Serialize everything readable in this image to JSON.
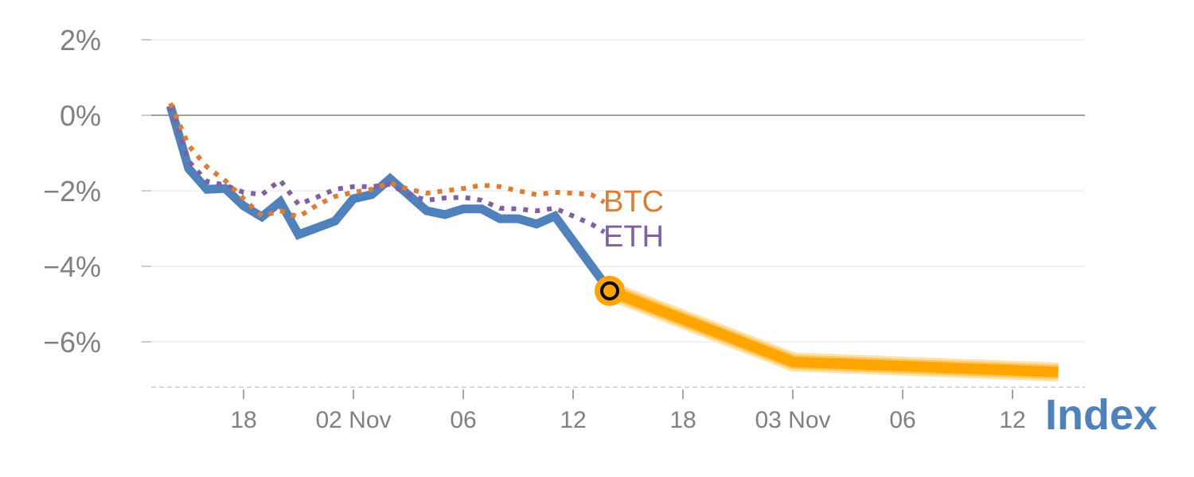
{
  "chart_data": {
    "type": "line",
    "title": "",
    "xlabel": "",
    "ylabel": "",
    "x_unit": "hours since 01 Nov 00:00",
    "xlim": [
      13,
      64
    ],
    "ylim": [
      -7.2,
      2.2
    ],
    "grid": true,
    "x_ticks": [
      {
        "value": 18,
        "label": "18"
      },
      {
        "value": 24,
        "label": "02 Nov"
      },
      {
        "value": 30,
        "label": "06"
      },
      {
        "value": 36,
        "label": "12"
      },
      {
        "value": 42,
        "label": "18"
      },
      {
        "value": 48,
        "label": "03 Nov"
      },
      {
        "value": 54,
        "label": "06"
      },
      {
        "value": 60,
        "label": "12"
      }
    ],
    "y_ticks": [
      {
        "value": 2,
        "label": "2%"
      },
      {
        "value": 0,
        "label": "0%"
      },
      {
        "value": -2,
        "label": "−2%"
      },
      {
        "value": -4,
        "label": "−4%"
      },
      {
        "value": -6,
        "label": "−6%"
      }
    ],
    "series": [
      {
        "name": "BTC",
        "label": "BTC",
        "color": "#e07b32",
        "style": "dotted",
        "points": [
          [
            14,
            0.32
          ],
          [
            15,
            -0.8
          ],
          [
            16,
            -1.37
          ],
          [
            17,
            -1.73
          ],
          [
            18,
            -2.21
          ],
          [
            19,
            -2.67
          ],
          [
            20,
            -2.53
          ],
          [
            21,
            -2.69
          ],
          [
            22,
            -2.38
          ],
          [
            23,
            -2.15
          ],
          [
            24,
            -2.04
          ],
          [
            25,
            -1.96
          ],
          [
            26,
            -1.79
          ],
          [
            27,
            -1.96
          ],
          [
            28,
            -2.06
          ],
          [
            29,
            -2.0
          ],
          [
            30,
            -1.94
          ],
          [
            31,
            -1.85
          ],
          [
            32,
            -1.89
          ],
          [
            33,
            -2.0
          ],
          [
            34,
            -2.1
          ],
          [
            35,
            -2.04
          ],
          [
            36,
            -2.06
          ],
          [
            37,
            -2.1
          ],
          [
            37.7,
            -2.3
          ]
        ]
      },
      {
        "name": "ETH",
        "label": "ETH",
        "color": "#7f5fa8",
        "style": "dotted",
        "points": [
          [
            14,
            0.25
          ],
          [
            15,
            -1.22
          ],
          [
            16,
            -1.75
          ],
          [
            17,
            -1.85
          ],
          [
            18,
            -2.04
          ],
          [
            19,
            -2.1
          ],
          [
            20,
            -1.72
          ],
          [
            21,
            -2.36
          ],
          [
            22,
            -2.17
          ],
          [
            23,
            -1.96
          ],
          [
            24,
            -1.89
          ],
          [
            25,
            -1.89
          ],
          [
            26,
            -1.83
          ],
          [
            27,
            -2.1
          ],
          [
            28,
            -2.25
          ],
          [
            29,
            -2.19
          ],
          [
            30,
            -2.17
          ],
          [
            31,
            -2.25
          ],
          [
            32,
            -2.46
          ],
          [
            33,
            -2.48
          ],
          [
            34,
            -2.53
          ],
          [
            35,
            -2.46
          ],
          [
            36,
            -2.67
          ],
          [
            37,
            -2.88
          ],
          [
            37.7,
            -3.09
          ]
        ]
      },
      {
        "name": "Index",
        "label": "Index",
        "color": "#4f81bd",
        "style": "solid",
        "points": [
          [
            14,
            0.25
          ],
          [
            15,
            -1.41
          ],
          [
            16,
            -1.96
          ],
          [
            17,
            -1.94
          ],
          [
            18,
            -2.4
          ],
          [
            19,
            -2.69
          ],
          [
            20,
            -2.29
          ],
          [
            21,
            -3.16
          ],
          [
            23,
            -2.8
          ],
          [
            24,
            -2.21
          ],
          [
            25,
            -2.1
          ],
          [
            26,
            -1.68
          ],
          [
            28,
            -2.53
          ],
          [
            29,
            -2.63
          ],
          [
            30,
            -2.48
          ],
          [
            31,
            -2.48
          ],
          [
            32,
            -2.74
          ],
          [
            33,
            -2.74
          ],
          [
            34,
            -2.88
          ],
          [
            35,
            -2.67
          ],
          [
            38,
            -4.65
          ]
        ]
      },
      {
        "name": "Index forecast",
        "color": "#ffa500",
        "style": "thick",
        "points": [
          [
            38,
            -4.65
          ],
          [
            48,
            -6.53
          ],
          [
            62.5,
            -6.8
          ]
        ]
      }
    ],
    "marker": {
      "x": 38,
      "y": -4.65,
      "color": "#ffa500"
    }
  }
}
